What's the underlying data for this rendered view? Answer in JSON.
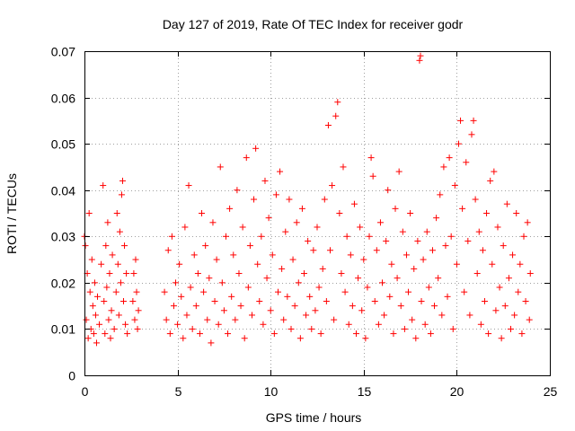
{
  "chart_data": {
    "type": "scatter",
    "title": "Day 127 of 2019, Rate Of TEC Index for receiver godr",
    "xlabel": "GPS time / hours",
    "ylabel": "ROTI / TECUs",
    "xlim": [
      0,
      25
    ],
    "ylim": [
      0,
      0.07
    ],
    "xticks": [
      0,
      5,
      10,
      15,
      20,
      25
    ],
    "xtick_labels": [
      "0",
      "5",
      "10",
      "15",
      "20",
      "25"
    ],
    "yticks": [
      0,
      0.01,
      0.02,
      0.03,
      0.04,
      0.05,
      0.06,
      0.07
    ],
    "ytick_labels": [
      "0",
      "0.01",
      "0.02",
      "0.03",
      "0.04",
      "0.05",
      "0.06",
      "0.07"
    ],
    "grid": true,
    "marker": "+",
    "series": [
      {
        "name": "ROTI",
        "color": "#ff0000",
        "points": [
          [
            0.0,
            0.03
          ],
          [
            0.05,
            0.028
          ],
          [
            0.1,
            0.012
          ],
          [
            0.15,
            0.022
          ],
          [
            0.2,
            0.008
          ],
          [
            0.25,
            0.035
          ],
          [
            0.3,
            0.018
          ],
          [
            0.35,
            0.01
          ],
          [
            0.4,
            0.025
          ],
          [
            0.45,
            0.015
          ],
          [
            0.5,
            0.009
          ],
          [
            0.55,
            0.02
          ],
          [
            0.6,
            0.013
          ],
          [
            0.65,
            0.007
          ],
          [
            0.7,
            0.017
          ],
          [
            0.8,
            0.011
          ],
          [
            0.9,
            0.024
          ],
          [
            1.0,
            0.041
          ],
          [
            1.05,
            0.016
          ],
          [
            1.1,
            0.009
          ],
          [
            1.15,
            0.028
          ],
          [
            1.2,
            0.019
          ],
          [
            1.25,
            0.033
          ],
          [
            1.3,
            0.012
          ],
          [
            1.35,
            0.022
          ],
          [
            1.4,
            0.008
          ],
          [
            1.45,
            0.014
          ],
          [
            1.5,
            0.026
          ],
          [
            1.6,
            0.01
          ],
          [
            1.7,
            0.018
          ],
          [
            1.75,
            0.035
          ],
          [
            1.8,
            0.024
          ],
          [
            1.85,
            0.013
          ],
          [
            1.9,
            0.031
          ],
          [
            1.95,
            0.02
          ],
          [
            2.0,
            0.039
          ],
          [
            2.05,
            0.042
          ],
          [
            2.1,
            0.016
          ],
          [
            2.15,
            0.028
          ],
          [
            2.2,
            0.011
          ],
          [
            2.25,
            0.022
          ],
          [
            2.3,
            0.009
          ],
          [
            2.6,
            0.016
          ],
          [
            2.65,
            0.022
          ],
          [
            2.7,
            0.012
          ],
          [
            2.75,
            0.025
          ],
          [
            2.8,
            0.018
          ],
          [
            2.85,
            0.01
          ],
          [
            2.9,
            0.014
          ],
          [
            4.3,
            0.018
          ],
          [
            4.4,
            0.012
          ],
          [
            4.5,
            0.027
          ],
          [
            4.6,
            0.009
          ],
          [
            4.7,
            0.03
          ],
          [
            4.8,
            0.015
          ],
          [
            4.9,
            0.02
          ],
          [
            5.0,
            0.011
          ],
          [
            5.1,
            0.024
          ],
          [
            5.2,
            0.017
          ],
          [
            5.3,
            0.008
          ],
          [
            5.4,
            0.032
          ],
          [
            5.5,
            0.013
          ],
          [
            5.6,
            0.041
          ],
          [
            5.7,
            0.019
          ],
          [
            5.8,
            0.01
          ],
          [
            5.9,
            0.026
          ],
          [
            6.0,
            0.015
          ],
          [
            6.1,
            0.022
          ],
          [
            6.2,
            0.009
          ],
          [
            6.3,
            0.035
          ],
          [
            6.4,
            0.018
          ],
          [
            6.5,
            0.028
          ],
          [
            6.6,
            0.012
          ],
          [
            6.7,
            0.021
          ],
          [
            6.8,
            0.007
          ],
          [
            6.9,
            0.033
          ],
          [
            7.0,
            0.016
          ],
          [
            7.1,
            0.025
          ],
          [
            7.2,
            0.011
          ],
          [
            7.3,
            0.045
          ],
          [
            7.4,
            0.02
          ],
          [
            7.5,
            0.014
          ],
          [
            7.6,
            0.03
          ],
          [
            7.7,
            0.009
          ],
          [
            7.8,
            0.036
          ],
          [
            7.9,
            0.017
          ],
          [
            8.0,
            0.026
          ],
          [
            8.1,
            0.012
          ],
          [
            8.2,
            0.04
          ],
          [
            8.3,
            0.022
          ],
          [
            8.4,
            0.015
          ],
          [
            8.5,
            0.032
          ],
          [
            8.6,
            0.008
          ],
          [
            8.7,
            0.047
          ],
          [
            8.8,
            0.019
          ],
          [
            8.9,
            0.028
          ],
          [
            9.0,
            0.013
          ],
          [
            9.1,
            0.038
          ],
          [
            9.2,
            0.049
          ],
          [
            9.3,
            0.024
          ],
          [
            9.4,
            0.016
          ],
          [
            9.5,
            0.03
          ],
          [
            9.6,
            0.011
          ],
          [
            9.7,
            0.042
          ],
          [
            9.8,
            0.021
          ],
          [
            9.9,
            0.034
          ],
          [
            10.0,
            0.014
          ],
          [
            10.1,
            0.026
          ],
          [
            10.2,
            0.009
          ],
          [
            10.3,
            0.039
          ],
          [
            10.4,
            0.018
          ],
          [
            10.5,
            0.044
          ],
          [
            10.6,
            0.023
          ],
          [
            10.7,
            0.012
          ],
          [
            10.8,
            0.031
          ],
          [
            10.9,
            0.017
          ],
          [
            11.0,
            0.038
          ],
          [
            11.1,
            0.01
          ],
          [
            11.2,
            0.025
          ],
          [
            11.3,
            0.015
          ],
          [
            11.4,
            0.033
          ],
          [
            11.5,
            0.02
          ],
          [
            11.6,
            0.008
          ],
          [
            11.7,
            0.036
          ],
          [
            11.8,
            0.022
          ],
          [
            11.9,
            0.013
          ],
          [
            12.0,
            0.029
          ],
          [
            12.1,
            0.017
          ],
          [
            12.2,
            0.01
          ],
          [
            12.3,
            0.027
          ],
          [
            12.4,
            0.014
          ],
          [
            12.5,
            0.032
          ],
          [
            12.6,
            0.019
          ],
          [
            12.7,
            0.009
          ],
          [
            12.8,
            0.023
          ],
          [
            12.9,
            0.038
          ],
          [
            13.0,
            0.016
          ],
          [
            13.1,
            0.054
          ],
          [
            13.2,
            0.027
          ],
          [
            13.3,
            0.041
          ],
          [
            13.4,
            0.012
          ],
          [
            13.5,
            0.056
          ],
          [
            13.6,
            0.059
          ],
          [
            13.7,
            0.035
          ],
          [
            13.8,
            0.022
          ],
          [
            13.9,
            0.045
          ],
          [
            14.0,
            0.018
          ],
          [
            14.1,
            0.03
          ],
          [
            14.2,
            0.011
          ],
          [
            14.3,
            0.026
          ],
          [
            14.4,
            0.015
          ],
          [
            14.5,
            0.037
          ],
          [
            14.6,
            0.009
          ],
          [
            14.7,
            0.021
          ],
          [
            14.8,
            0.032
          ],
          [
            14.9,
            0.014
          ],
          [
            15.0,
            0.025
          ],
          [
            15.1,
            0.008
          ],
          [
            15.2,
            0.019
          ],
          [
            15.3,
            0.03
          ],
          [
            15.4,
            0.047
          ],
          [
            15.5,
            0.043
          ],
          [
            15.6,
            0.016
          ],
          [
            15.7,
            0.027
          ],
          [
            15.8,
            0.011
          ],
          [
            15.9,
            0.033
          ],
          [
            16.0,
            0.02
          ],
          [
            16.1,
            0.013
          ],
          [
            16.2,
            0.029
          ],
          [
            16.3,
            0.04
          ],
          [
            16.4,
            0.017
          ],
          [
            16.5,
            0.024
          ],
          [
            16.6,
            0.009
          ],
          [
            16.7,
            0.036
          ],
          [
            16.8,
            0.021
          ],
          [
            16.9,
            0.044
          ],
          [
            17.0,
            0.015
          ],
          [
            17.1,
            0.031
          ],
          [
            17.2,
            0.01
          ],
          [
            17.3,
            0.026
          ],
          [
            17.4,
            0.018
          ],
          [
            17.5,
            0.035
          ],
          [
            17.6,
            0.012
          ],
          [
            17.7,
            0.023
          ],
          [
            17.8,
            0.008
          ],
          [
            17.9,
            0.029
          ],
          [
            18.0,
            0.068
          ],
          [
            18.05,
            0.069
          ],
          [
            18.1,
            0.016
          ],
          [
            18.2,
            0.025
          ],
          [
            18.3,
            0.011
          ],
          [
            18.4,
            0.031
          ],
          [
            18.5,
            0.019
          ],
          [
            18.6,
            0.009
          ],
          [
            18.7,
            0.027
          ],
          [
            18.8,
            0.015
          ],
          [
            18.9,
            0.034
          ],
          [
            19.0,
            0.021
          ],
          [
            19.1,
            0.039
          ],
          [
            19.2,
            0.013
          ],
          [
            19.3,
            0.045
          ],
          [
            19.4,
            0.028
          ],
          [
            19.5,
            0.017
          ],
          [
            19.6,
            0.047
          ],
          [
            19.7,
            0.03
          ],
          [
            19.8,
            0.01
          ],
          [
            19.9,
            0.041
          ],
          [
            20.0,
            0.024
          ],
          [
            20.1,
            0.05
          ],
          [
            20.2,
            0.055
          ],
          [
            20.3,
            0.036
          ],
          [
            20.4,
            0.018
          ],
          [
            20.5,
            0.046
          ],
          [
            20.6,
            0.029
          ],
          [
            20.7,
            0.013
          ],
          [
            20.8,
            0.052
          ],
          [
            20.9,
            0.055
          ],
          [
            21.0,
            0.038
          ],
          [
            21.1,
            0.022
          ],
          [
            21.2,
            0.031
          ],
          [
            21.3,
            0.011
          ],
          [
            21.4,
            0.027
          ],
          [
            21.5,
            0.016
          ],
          [
            21.6,
            0.035
          ],
          [
            21.7,
            0.009
          ],
          [
            21.8,
            0.042
          ],
          [
            21.9,
            0.024
          ],
          [
            22.0,
            0.044
          ],
          [
            22.1,
            0.014
          ],
          [
            22.2,
            0.032
          ],
          [
            22.3,
            0.019
          ],
          [
            22.4,
            0.008
          ],
          [
            22.5,
            0.028
          ],
          [
            22.6,
            0.015
          ],
          [
            22.7,
            0.037
          ],
          [
            22.8,
            0.021
          ],
          [
            22.9,
            0.01
          ],
          [
            23.0,
            0.026
          ],
          [
            23.1,
            0.013
          ],
          [
            23.2,
            0.035
          ],
          [
            23.3,
            0.018
          ],
          [
            23.4,
            0.024
          ],
          [
            23.5,
            0.009
          ],
          [
            23.6,
            0.03
          ],
          [
            23.7,
            0.016
          ],
          [
            23.8,
            0.033
          ],
          [
            23.9,
            0.012
          ],
          [
            23.95,
            0.022
          ]
        ]
      }
    ]
  }
}
